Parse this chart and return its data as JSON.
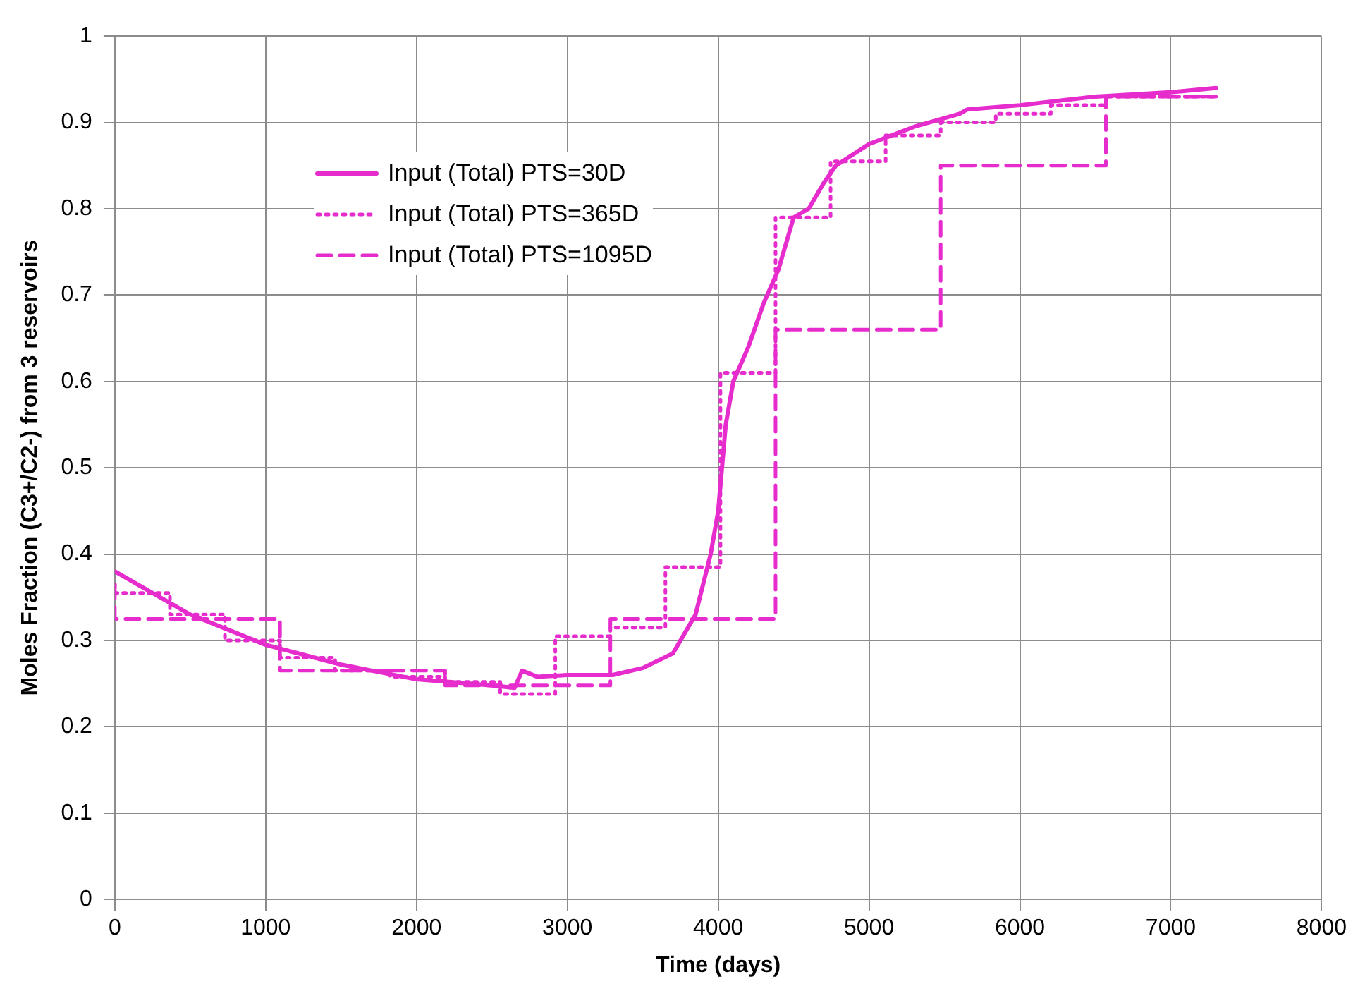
{
  "chart_data": {
    "type": "line",
    "xlabel": "Time (days)",
    "ylabel": "Moles Fraction (C3+/C2-) from 3 reservoirs",
    "xlim": [
      0,
      8000
    ],
    "xticks": [
      0,
      1000,
      2000,
      3000,
      4000,
      5000,
      6000,
      7000,
      8000
    ],
    "ylim": [
      0,
      1
    ],
    "yticks": [
      0,
      0.1,
      0.2,
      0.3,
      0.4,
      0.5,
      0.6,
      0.7,
      0.8,
      0.9,
      1
    ],
    "grid": true,
    "legend": "top left",
    "marker": "none",
    "series": [
      {
        "name": "Input (Total) PTS=30D",
        "color": "#e62ccc",
        "line_style": "solid",
        "x": [
          0,
          100,
          500,
          1000,
          1500,
          2000,
          2500,
          2650,
          2700,
          2800,
          3000,
          3300,
          3500,
          3700,
          3850,
          3950,
          4000,
          4050,
          4100,
          4200,
          4300,
          4400,
          4500,
          4600,
          4700,
          4780,
          5000,
          5300,
          5600,
          5650,
          6000,
          6500,
          7000,
          7300
        ],
        "values": [
          0.38,
          0.37,
          0.33,
          0.295,
          0.272,
          0.255,
          0.248,
          0.245,
          0.265,
          0.258,
          0.26,
          0.26,
          0.268,
          0.285,
          0.33,
          0.4,
          0.45,
          0.55,
          0.6,
          0.64,
          0.69,
          0.73,
          0.79,
          0.8,
          0.83,
          0.85,
          0.875,
          0.895,
          0.91,
          0.915,
          0.92,
          0.93,
          0.935,
          0.94
        ]
      },
      {
        "name": "Input (Total) PTS=365D",
        "color": "#e62ccc",
        "line_style": "dotted",
        "x": [
          0,
          0,
          365,
          365,
          730,
          730,
          1095,
          1095,
          1460,
          1460,
          1825,
          1825,
          2190,
          2190,
          2555,
          2555,
          2920,
          2920,
          3285,
          3285,
          3650,
          3650,
          4015,
          4015,
          4380,
          4380,
          4745,
          4745,
          5110,
          5110,
          5475,
          5475,
          5840,
          5840,
          6205,
          6205,
          6570,
          6570,
          7300
        ],
        "values": [
          0.365,
          0.355,
          0.355,
          0.33,
          0.33,
          0.3,
          0.3,
          0.28,
          0.28,
          0.265,
          0.265,
          0.258,
          0.258,
          0.252,
          0.252,
          0.238,
          0.238,
          0.305,
          0.305,
          0.315,
          0.315,
          0.385,
          0.385,
          0.61,
          0.61,
          0.79,
          0.79,
          0.855,
          0.855,
          0.885,
          0.885,
          0.9,
          0.9,
          0.91,
          0.91,
          0.92,
          0.92,
          0.93,
          0.93
        ]
      },
      {
        "name": "Input (Total) PTS=1095D",
        "color": "#e62ccc",
        "line_style": "dashed",
        "x": [
          0,
          0,
          1095,
          1095,
          2190,
          2190,
          3285,
          3285,
          4380,
          4380,
          5475,
          5475,
          6570,
          6570,
          7300
        ],
        "values": [
          0.365,
          0.325,
          0.325,
          0.265,
          0.265,
          0.248,
          0.248,
          0.325,
          0.325,
          0.66,
          0.66,
          0.85,
          0.85,
          0.93,
          0.93
        ]
      }
    ]
  }
}
